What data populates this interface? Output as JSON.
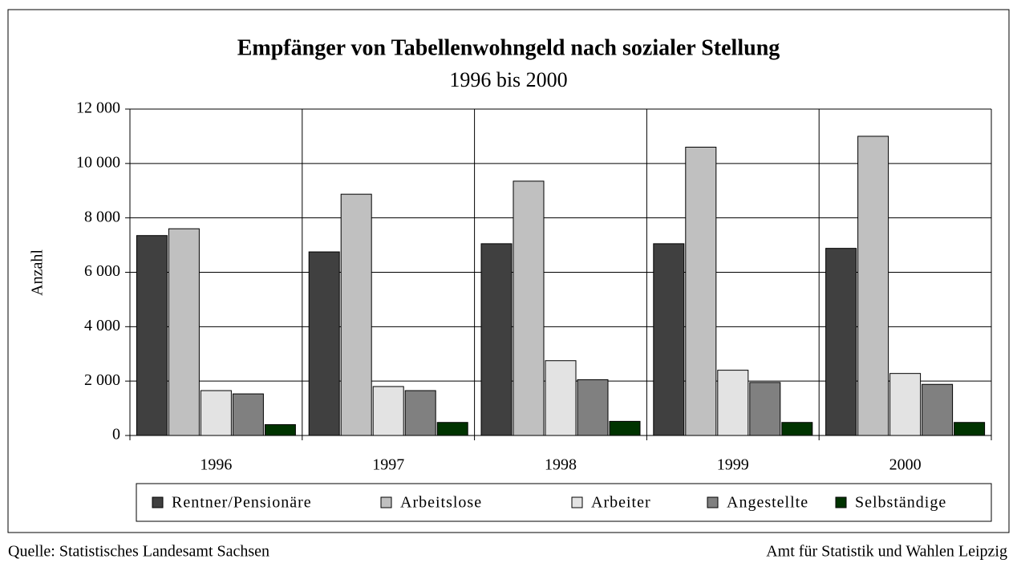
{
  "chart_data": {
    "type": "bar",
    "title": "Empfänger von Tabellenwohngeld nach sozialer Stellung",
    "subtitle": "1996 bis 2000",
    "y_label": "Anzahl",
    "categories": [
      "1996",
      "1997",
      "1998",
      "1999",
      "2000"
    ],
    "series": [
      {
        "name": "Rentner/Pensionäre",
        "color": "#404040",
        "values": [
          7350,
          6750,
          7050,
          7050,
          6880
        ]
      },
      {
        "name": "Arbeitslose",
        "color": "#c0c0c0",
        "values": [
          7600,
          8870,
          9350,
          10600,
          11000
        ]
      },
      {
        "name": "Arbeiter",
        "color": "#e3e3e3",
        "values": [
          1650,
          1800,
          2750,
          2400,
          2280
        ]
      },
      {
        "name": "Angestellte",
        "color": "#808080",
        "values": [
          1530,
          1650,
          2050,
          1950,
          1880
        ]
      },
      {
        "name": "Selbständige",
        "color": "#003300",
        "values": [
          400,
          480,
          520,
          480,
          480
        ]
      }
    ],
    "ylim": [
      0,
      12000
    ],
    "yticks": [
      0,
      {
        "value": 2000,
        "label": "2 000"
      },
      {
        "value": 4000,
        "label": "4 000"
      },
      {
        "value": 6000,
        "label": "6 000"
      },
      {
        "value": 8000,
        "label": "8 000"
      },
      {
        "value": 10000,
        "label": "10 000"
      },
      {
        "value": 12000,
        "label": "12 000"
      }
    ],
    "grid": true,
    "legend": "bottom",
    "source": "Quelle: Statistisches Landesamt Sachsen",
    "credit": "Amt für Statistik und Wahlen Leipzig"
  }
}
